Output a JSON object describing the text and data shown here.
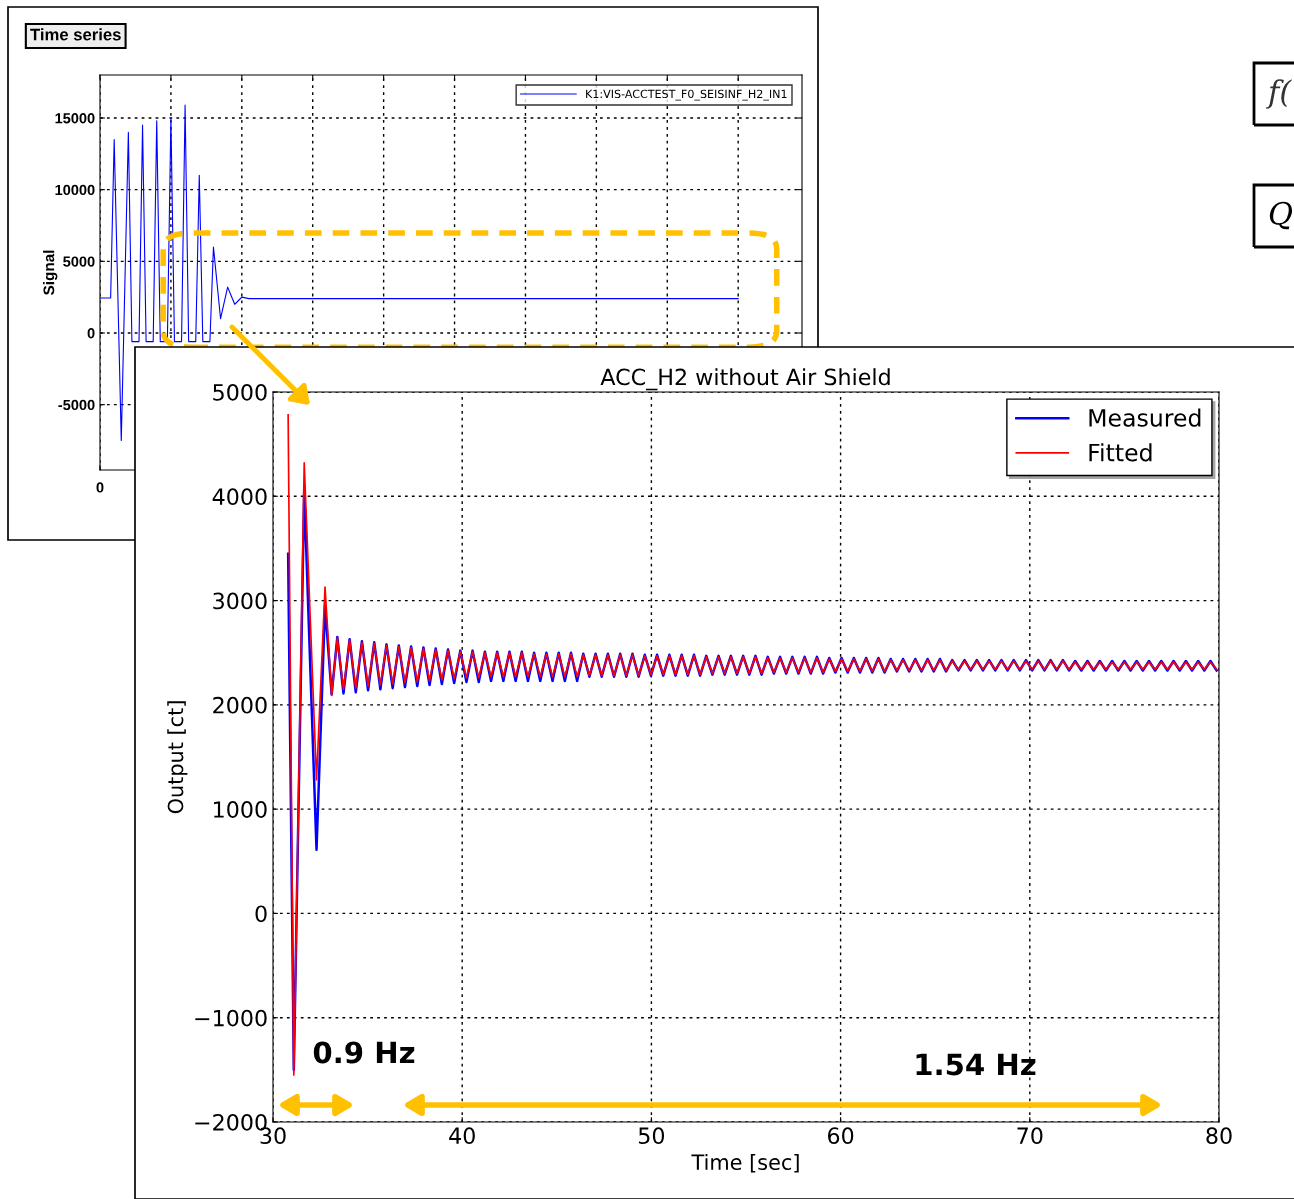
{
  "chart_data": [
    {
      "type": "line",
      "title": "Time series",
      "ylabel": "Signal",
      "annotations": [
        "0",
        "f(",
        "Q"
      ],
      "categories": [
        null,
        null,
        null,
        null,
        null,
        null,
        null,
        null,
        null,
        null,
        null,
        null,
        null,
        null,
        null,
        null,
        null,
        null,
        null,
        null,
        null,
        null,
        null,
        null,
        null,
        null,
        null,
        null,
        null,
        null,
        null,
        null,
        null,
        null,
        null,
        null,
        null,
        null,
        null,
        null,
        null,
        null,
        null,
        null,
        null,
        null,
        null,
        null,
        null,
        null,
        null,
        null,
        null,
        null,
        null,
        null,
        null,
        null,
        null,
        null,
        null,
        null,
        null,
        null,
        null,
        null,
        null,
        null,
        null,
        null,
        null,
        null,
        null,
        null,
        null,
        null,
        null,
        null,
        null,
        null,
        null,
        null,
        null,
        null,
        null,
        null,
        null,
        null,
        null,
        null,
        null,
        null,
        null,
        null,
        null,
        null,
        null,
        null,
        null,
        null,
        null,
        null,
        null,
        null,
        null,
        null,
        null,
        null,
        null,
        null,
        null,
        null,
        null,
        null,
        null,
        null,
        null,
        null,
        null,
        null,
        null,
        null,
        null,
        null,
        null,
        null,
        null,
        null,
        null,
        null,
        null,
        null,
        null,
        null,
        null,
        null,
        null,
        null,
        null,
        null,
        null,
        null,
        null,
        null,
        null,
        null,
        null,
        null,
        null,
        null,
        null,
        null,
        null,
        null,
        null,
        null,
        null,
        null,
        null,
        null,
        null,
        null,
        null,
        null,
        null,
        null,
        null,
        null,
        null,
        null,
        null,
        null,
        null,
        null,
        null,
        null,
        null,
        null,
        null,
        null,
        null,
        null,
        null,
        null,
        null,
        null,
        null,
        null,
        null,
        null,
        null,
        null,
        null,
        null,
        null,
        null,
        null,
        null,
        null
      ],
      "series": [
        {
          "name": "K1:VIS-ACCTEST_F0_SEISINF_H2_IN1",
          "color": "#0000ff",
          "values": [
            2440,
            2440,
            2440,
            2440,
            13500,
            3000,
            -7500,
            3250,
            14000,
            -600,
            -600,
            -600,
            14500,
            -600,
            -600,
            -600,
            14800,
            -600,
            -600,
            -600,
            15000,
            -600,
            -600,
            -600,
            15900,
            -600,
            -600,
            -600,
            11000,
            -600,
            -600,
            -600,
            6000,
            3500,
            1000,
            2100,
            3200,
            2600,
            2000,
            2250,
            2500,
            2450,
            2400,
            2400,
            2400,
            2400,
            2400,
            2400,
            2400,
            2400,
            2400,
            2400,
            2400,
            2400,
            2400,
            2400,
            2400,
            2400,
            2400,
            2400,
            2400,
            2400,
            2400,
            2400,
            2400,
            2400,
            2400,
            2400,
            2400,
            2400,
            2400,
            2400,
            2400,
            2400,
            2400,
            2400,
            2400,
            2400,
            2400,
            2400,
            2400,
            2400,
            2400,
            2400,
            2400,
            2400,
            2400,
            2400,
            2400,
            2400,
            2400,
            2400,
            2400,
            2400,
            2400,
            2400,
            2400,
            2400,
            2400,
            2400,
            2400,
            2400,
            2400,
            2400,
            2400,
            2400,
            2400,
            2400,
            2400,
            2400,
            2400,
            2400,
            2400,
            2400,
            2400,
            2400,
            2400,
            2400,
            2400,
            2400,
            2400,
            2400,
            2400,
            2400,
            2400,
            2400,
            2400,
            2400,
            2400,
            2400,
            2400,
            2400,
            2400,
            2400,
            2400,
            2400,
            2400,
            2400,
            2400,
            2400,
            2400,
            2400,
            2400,
            2400,
            2400,
            2400,
            2400,
            2400,
            2400,
            2400,
            2400,
            2400,
            2400,
            2400,
            2400,
            2400,
            2400,
            2400,
            2400,
            2400,
            2400,
            2400,
            2400,
            2400,
            2400,
            2400,
            2400,
            2400,
            2400,
            2400,
            2400,
            2400,
            2400,
            2400,
            2400,
            2400,
            2400,
            2400,
            2400,
            2400,
            2400,
            null,
            null,
            null,
            null,
            null,
            null,
            null,
            null,
            null,
            null,
            null,
            null,
            null,
            null,
            null,
            null,
            null,
            null
          ]
        }
      ],
      "ylim": [
        -9560,
        18000
      ],
      "yticks": [
        -5000,
        0,
        5000,
        10000,
        15000
      ],
      "grid": true,
      "legend": "top right",
      "line_style": "solid",
      "marker": "none"
    },
    {
      "type": "line",
      "title": "ACC_H2 without Air Shield",
      "xlabel": "Time [sec]",
      "ylabel": "Output [ct]",
      "x": [
        30.8,
        31.1,
        31.65,
        32.3,
        32.75,
        33.1,
        33.4,
        33.725,
        34.05,
        34.375,
        34.7,
        35.025,
        35.35,
        35.675,
        36.0,
        36.325,
        36.65,
        36.975,
        37.3,
        37.625,
        37.95,
        38.275,
        38.6,
        38.925,
        39.25,
        39.575,
        39.9,
        40.225,
        40.55,
        40.875,
        41.2,
        41.525,
        41.85,
        42.175,
        42.5,
        42.825,
        43.15,
        43.475,
        43.8,
        44.125,
        44.45,
        44.775,
        45.1,
        45.425,
        45.75,
        46.075,
        46.4,
        46.725,
        47.05,
        47.375,
        47.7,
        48.025,
        48.35,
        48.675,
        49.0,
        49.325,
        49.65,
        49.975,
        50.3,
        50.625,
        50.95,
        51.275,
        51.6,
        51.925,
        52.25,
        52.575,
        52.9,
        53.225,
        53.55,
        53.875,
        54.2,
        54.525,
        54.85,
        55.175,
        55.5,
        55.825,
        56.15,
        56.475,
        56.8,
        57.125,
        57.45,
        57.775,
        58.1,
        58.425,
        58.75,
        59.075,
        59.4,
        59.725,
        60.05,
        60.375,
        60.7,
        61.025,
        61.35,
        61.675,
        62.0,
        62.325,
        62.65,
        62.975,
        63.3,
        63.625,
        63.95,
        64.275,
        64.6,
        64.925,
        65.25,
        65.575,
        65.9,
        66.225,
        66.55,
        66.875,
        67.2,
        67.525,
        67.85,
        68.175,
        68.5,
        68.825,
        69.15,
        69.475,
        69.8,
        70.125,
        70.45,
        70.775,
        71.1,
        71.425,
        71.75,
        72.075,
        72.4,
        72.725,
        73.05,
        73.375,
        73.7,
        74.025,
        74.35,
        74.675,
        75.0,
        75.325,
        75.65,
        75.975,
        76.3,
        76.625,
        76.95,
        77.275,
        77.6,
        77.925,
        78.25,
        78.575,
        78.9,
        79.225,
        79.55,
        79.875
      ],
      "series": [
        {
          "name": "Measured",
          "color": "#0000ff",
          "values": [
            3450,
            -1500,
            4060,
            610,
            2950,
            2100,
            2650,
            2110,
            2630,
            2120,
            2610,
            2140,
            2600,
            2150,
            2580,
            2160,
            2570,
            2170,
            2560,
            2180,
            2550,
            2190,
            2540,
            2200,
            2530,
            2210,
            2520,
            2220,
            2520,
            2220,
            2510,
            2230,
            2510,
            2230,
            2510,
            2230,
            2510,
            2230,
            2500,
            2230,
            2500,
            2230,
            2500,
            2230,
            2500,
            2230,
            2490,
            2270,
            2490,
            2270,
            2490,
            2270,
            2490,
            2270,
            2490,
            2270,
            2480,
            2280,
            2480,
            2280,
            2480,
            2280,
            2480,
            2280,
            2480,
            2280,
            2470,
            2290,
            2470,
            2290,
            2470,
            2290,
            2470,
            2290,
            2470,
            2290,
            2460,
            2300,
            2460,
            2300,
            2460,
            2300,
            2460,
            2300,
            2460,
            2300,
            2450,
            2310,
            2450,
            2310,
            2450,
            2310,
            2450,
            2310,
            2450,
            2310,
            2440,
            2320,
            2440,
            2320,
            2440,
            2320,
            2440,
            2320,
            2440,
            2320,
            2430,
            2330,
            2430,
            2330,
            2430,
            2330,
            2430,
            2330,
            2430,
            2330,
            2430,
            2330,
            2430,
            2330,
            2430,
            2330,
            2430,
            2330,
            2430,
            2330,
            2420,
            2330,
            2420,
            2330,
            2420,
            2330,
            2420,
            2330,
            2420,
            2330,
            2420,
            2330,
            2420,
            2330,
            2420,
            2330,
            2420,
            2330,
            2420,
            2330,
            2420,
            2330,
            2420,
            2330
          ]
        },
        {
          "name": "Fitted",
          "color": "#ff0000",
          "values": [
            4780,
            -1550,
            4320,
            1280,
            3130,
            2090,
            2640,
            2150,
            2620,
            2160,
            2600,
            2180,
            2590,
            2190,
            2570,
            2200,
            2560,
            2210,
            2550,
            2220,
            2540,
            2230,
            2530,
            2240,
            2520,
            2250,
            2510,
            2260,
            2510,
            2260,
            2500,
            2270,
            2500,
            2270,
            2500,
            2270,
            2500,
            2270,
            2490,
            2270,
            2490,
            2270,
            2490,
            2270,
            2490,
            2270,
            2480,
            2280,
            2480,
            2280,
            2480,
            2280,
            2480,
            2280,
            2480,
            2280,
            2470,
            2290,
            2470,
            2290,
            2470,
            2290,
            2470,
            2290,
            2470,
            2290,
            2460,
            2300,
            2460,
            2300,
            2460,
            2300,
            2460,
            2300,
            2460,
            2300,
            2450,
            2310,
            2450,
            2310,
            2450,
            2310,
            2450,
            2310,
            2450,
            2310,
            2440,
            2320,
            2440,
            2320,
            2440,
            2320,
            2440,
            2320,
            2440,
            2320,
            2430,
            2330,
            2430,
            2330,
            2430,
            2330,
            2430,
            2330,
            2430,
            2330,
            2420,
            2340,
            2420,
            2340,
            2420,
            2340,
            2420,
            2340,
            2420,
            2340,
            2420,
            2340,
            2420,
            2340,
            2420,
            2340,
            2420,
            2340,
            2420,
            2340,
            2410,
            2340,
            2410,
            2340,
            2410,
            2340,
            2410,
            2340,
            2410,
            2340,
            2410,
            2340,
            2410,
            2340,
            2410,
            2340,
            2410,
            2340,
            2410,
            2340,
            2410,
            2340,
            2410,
            2340
          ]
        }
      ],
      "xlim": [
        30,
        80
      ],
      "xticks": [
        30,
        40,
        50,
        60,
        70,
        80
      ],
      "ylim": [
        -2000,
        5000
      ],
      "yticks": [
        {
          "value": -2000,
          "label": "−2000"
        },
        {
          "value": -1000,
          "label": "−1000"
        },
        0,
        1000,
        2000,
        3000,
        4000,
        5000
      ],
      "grid": true,
      "legend": "top right",
      "line_style": "solid",
      "marker": "none",
      "annotations": [
        "0.9 Hz",
        "1.54 Hz"
      ]
    }
  ]
}
